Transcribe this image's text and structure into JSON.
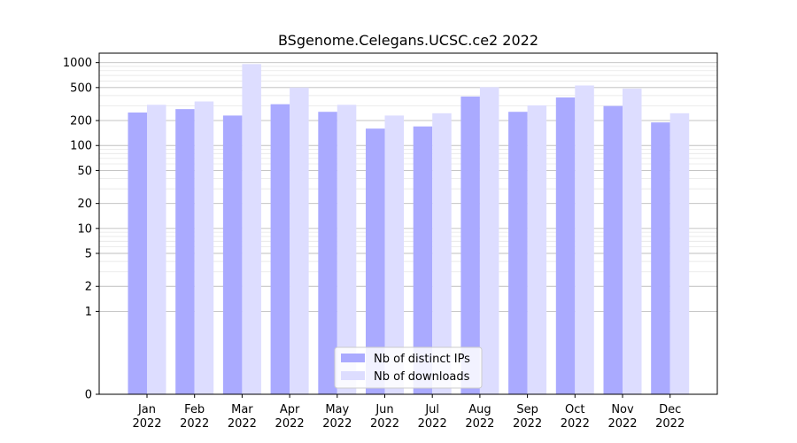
{
  "chart_data": {
    "type": "bar",
    "title": "BSgenome.Celegans.UCSC.ce2 2022",
    "xlabel": "",
    "ylabel": "",
    "yscale": "symlog",
    "ylim": [
      0,
      1300
    ],
    "yticks": [
      0,
      1,
      2,
      5,
      10,
      20,
      50,
      100,
      200,
      500,
      1000
    ],
    "grid": true,
    "legend_position": "bottom-center",
    "categories": [
      [
        "Jan",
        "2022"
      ],
      [
        "Feb",
        "2022"
      ],
      [
        "Mar",
        "2022"
      ],
      [
        "Apr",
        "2022"
      ],
      [
        "May",
        "2022"
      ],
      [
        "Jun",
        "2022"
      ],
      [
        "Jul",
        "2022"
      ],
      [
        "Aug",
        "2022"
      ],
      [
        "Sep",
        "2022"
      ],
      [
        "Oct",
        "2022"
      ],
      [
        "Nov",
        "2022"
      ],
      [
        "Dec",
        "2022"
      ]
    ],
    "series": [
      {
        "name": "Nb of distinct IPs",
        "color": "#aaaaff",
        "values": [
          250,
          275,
          230,
          315,
          255,
          160,
          170,
          390,
          255,
          380,
          300,
          190
        ]
      },
      {
        "name": "Nb of downloads",
        "color": "#ddddff",
        "values": [
          310,
          340,
          960,
          500,
          310,
          230,
          245,
          505,
          305,
          530,
          485,
          245
        ]
      }
    ]
  }
}
